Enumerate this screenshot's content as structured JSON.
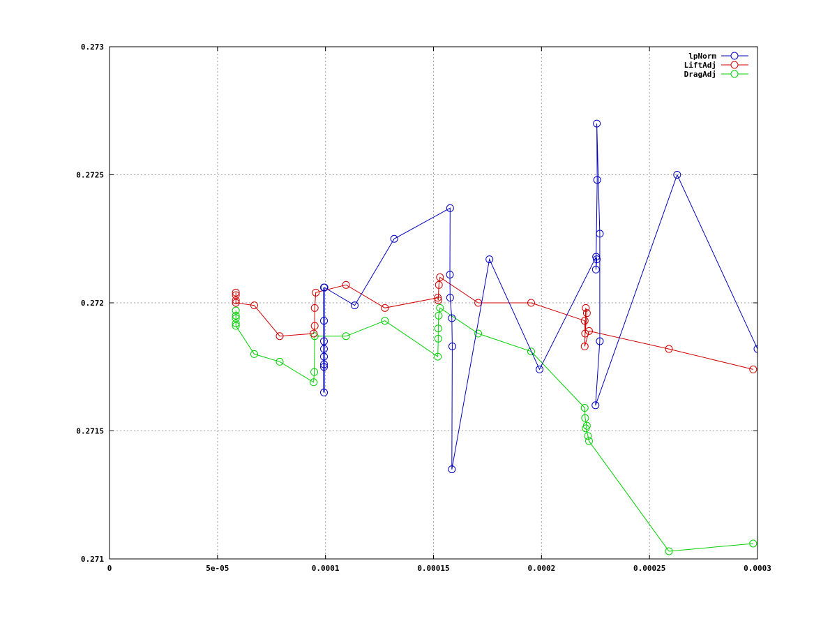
{
  "chart_data": {
    "type": "line",
    "title": "",
    "xlabel": "",
    "ylabel": "",
    "xlim": [
      0,
      0.0003
    ],
    "ylim": [
      0.271,
      0.273
    ],
    "grid": true,
    "legend_position": "top-right",
    "x_ticks": [
      {
        "value": 0,
        "label": "0"
      },
      {
        "value": 5e-05,
        "label": "5e-05"
      },
      {
        "value": 0.0001,
        "label": "0.0001"
      },
      {
        "value": 0.00015,
        "label": "0.00015"
      },
      {
        "value": 0.0002,
        "label": "0.0002"
      },
      {
        "value": 0.00025,
        "label": "0.00025"
      },
      {
        "value": 0.0003,
        "label": "0.0003"
      }
    ],
    "y_ticks": [
      {
        "value": 0.271,
        "label": "0.271"
      },
      {
        "value": 0.2715,
        "label": "0.2715"
      },
      {
        "value": 0.272,
        "label": "0.272"
      },
      {
        "value": 0.2725,
        "label": "0.2725"
      },
      {
        "value": 0.273,
        "label": "0.273"
      }
    ],
    "series": [
      {
        "name": "lpNorm",
        "color": "#0000c0",
        "points": [
          [
            9.95e-05,
            0.27206
          ],
          [
            0.0001135,
            0.27199
          ],
          [
            0.0001318,
            0.27225
          ],
          [
            0.0001577,
            0.27237
          ],
          [
            0.0001576,
            0.27211
          ],
          [
            0.0001577,
            0.27202
          ],
          [
            0.0001585,
            0.27194
          ],
          [
            0.0001587,
            0.27183
          ],
          [
            0.0001585,
            0.27135
          ],
          [
            0.0001759,
            0.27217
          ],
          [
            0.0001991,
            0.27174
          ],
          [
            0.0002253,
            0.27218
          ],
          [
            0.0002256,
            0.27217
          ],
          [
            0.0002252,
            0.27213
          ],
          [
            0.0002258,
            0.27248
          ],
          [
            0.0002256,
            0.2727
          ],
          [
            0.000227,
            0.27227
          ],
          [
            0.000227,
            0.27185
          ],
          [
            0.000225,
            0.2716
          ],
          [
            0.0002628,
            0.2725
          ],
          [
            0.0003,
            0.27182
          ]
        ],
        "cluster_x": 9.93e-05,
        "cluster_y": [
          0.27206,
          0.27193,
          0.27185,
          0.27182,
          0.27179,
          0.27176,
          0.27175,
          0.27165
        ]
      },
      {
        "name": "LiftAdj",
        "color": "#d00000",
        "points": [
          [
            5.85e-05,
            0.27204
          ],
          [
            5.85e-05,
            0.27203
          ],
          [
            5.85e-05,
            0.27201
          ],
          [
            5.85e-05,
            0.272
          ],
          [
            6.7e-05,
            0.27199
          ],
          [
            7.88e-05,
            0.27187
          ],
          [
            9.45e-05,
            0.27188
          ],
          [
            9.5e-05,
            0.27191
          ],
          [
            9.5e-05,
            0.27198
          ],
          [
            9.55e-05,
            0.27204
          ],
          [
            0.0001095,
            0.27207
          ],
          [
            0.0001275,
            0.27198
          ],
          [
            0.000152,
            0.27202
          ],
          [
            0.0001522,
            0.27201
          ],
          [
            0.0001525,
            0.27207
          ],
          [
            0.000153,
            0.2721
          ],
          [
            0.0001707,
            0.272
          ],
          [
            0.0001952,
            0.272
          ],
          [
            0.00022,
            0.27193
          ],
          [
            0.0002202,
            0.27188
          ],
          [
            0.000221,
            0.27196
          ],
          [
            0.0002205,
            0.27198
          ],
          [
            0.00022,
            0.27183
          ],
          [
            0.000222,
            0.27189
          ],
          [
            0.000259,
            0.27182
          ],
          [
            0.000298,
            0.27174
          ]
        ]
      },
      {
        "name": "DragAdj",
        "color": "#00d000",
        "points": [
          [
            5.85e-05,
            0.27197
          ],
          [
            5.85e-05,
            0.27195
          ],
          [
            5.85e-05,
            0.27194
          ],
          [
            5.85e-05,
            0.27192
          ],
          [
            5.85e-05,
            0.27191
          ],
          [
            6.7e-05,
            0.2718
          ],
          [
            7.88e-05,
            0.27177
          ],
          [
            9.45e-05,
            0.27169
          ],
          [
            9.48e-05,
            0.27173
          ],
          [
            9.5e-05,
            0.27187
          ],
          [
            0.0001095,
            0.27187
          ],
          [
            0.0001275,
            0.27193
          ],
          [
            0.000152,
            0.27179
          ],
          [
            0.0001522,
            0.27186
          ],
          [
            0.0001522,
            0.2719
          ],
          [
            0.0001524,
            0.27195
          ],
          [
            0.000153,
            0.27198
          ],
          [
            0.0001707,
            0.27188
          ],
          [
            0.0001952,
            0.27181
          ],
          [
            0.00022,
            0.27159
          ],
          [
            0.0002202,
            0.27155
          ],
          [
            0.000221,
            0.27152
          ],
          [
            0.0002205,
            0.27151
          ],
          [
            0.0002215,
            0.27148
          ],
          [
            0.000222,
            0.27146
          ],
          [
            0.000259,
            0.27103
          ],
          [
            0.000298,
            0.27106
          ]
        ]
      }
    ]
  }
}
